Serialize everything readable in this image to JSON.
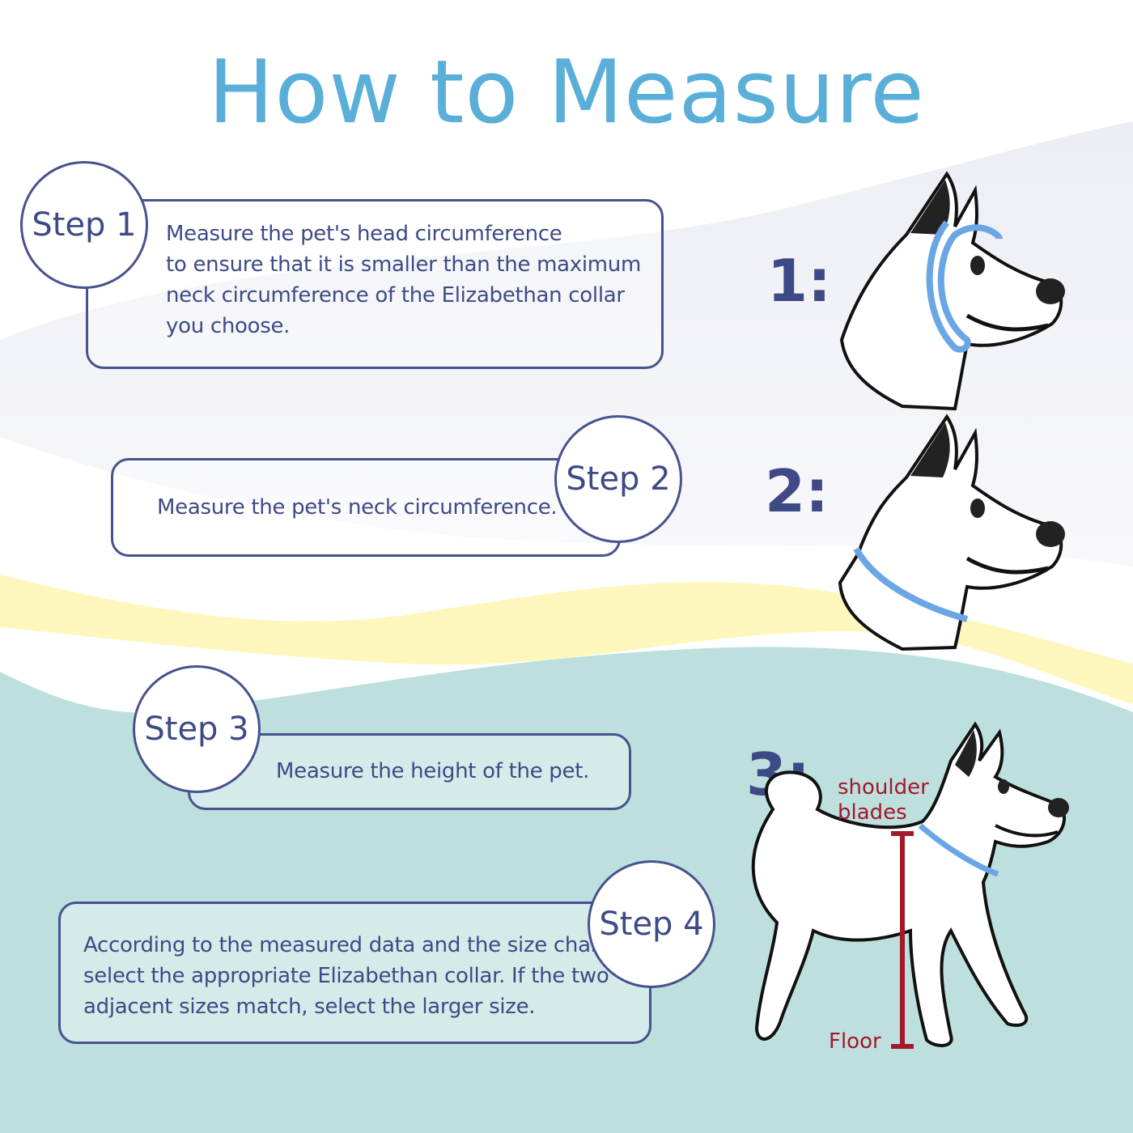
{
  "title": "How to Measure",
  "colors": {
    "title": "#5aafd8",
    "text": "#3d4a86",
    "teal": "#bde0de",
    "yellow": "#fdf7bd",
    "collar": "#6aa6e6",
    "measure_red": "#a3182a"
  },
  "steps": [
    {
      "label": "Step 1",
      "lines": [
        "Measure the pet's head circumference",
        "to ensure that it is smaller than the maximum",
        "neck circumference of the Elizabethan collar",
        "you choose."
      ]
    },
    {
      "label": "Step 2",
      "lines": [
        "Measure the pet's neck circumference."
      ]
    },
    {
      "label": "Step 3",
      "lines": [
        "Measure the height of the pet."
      ]
    },
    {
      "label": "Step 4",
      "lines": [
        "According to the measured data and the size chart,",
        "select the appropriate Elizabethan collar. If the two",
        "adjacent sizes match, select the larger size."
      ]
    }
  ],
  "illustrations": [
    {
      "number": "1:",
      "icon": "dog-head-collar-icon"
    },
    {
      "number": "2:",
      "icon": "dog-neck-collar-icon"
    },
    {
      "number": "3:",
      "icon": "dog-height-icon",
      "labels": [
        "shoulder",
        "blades"
      ],
      "floor_label": "Floor"
    }
  ]
}
